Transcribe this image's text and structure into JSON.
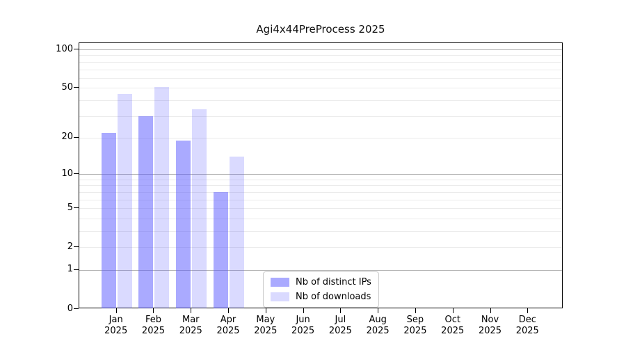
{
  "chart_data": {
    "type": "bar",
    "title": "Agi4x44PreProcess 2025",
    "categories": [
      "Jan 2025",
      "Feb 2025",
      "Mar 2025",
      "Apr 2025",
      "May 2025",
      "Jun 2025",
      "Jul 2025",
      "Aug 2025",
      "Sep 2025",
      "Oct 2025",
      "Nov 2025",
      "Dec 2025"
    ],
    "series": [
      {
        "name": "Nb of distinct IPs",
        "color": "#5555ff",
        "alpha": 0.5,
        "values": [
          22,
          30,
          19,
          7,
          0,
          0,
          0,
          0,
          0,
          0,
          0,
          0
        ]
      },
      {
        "name": "Nb of downloads",
        "color": "#5555ff",
        "alpha": 0.22,
        "values": [
          45,
          51,
          34,
          14,
          0,
          0,
          0,
          0,
          0,
          0,
          0,
          0
        ]
      }
    ],
    "xlabel": "",
    "ylabel": "",
    "yscale": "log1p",
    "ylim": [
      0,
      112
    ],
    "yticks": [
      0,
      1,
      2,
      5,
      10,
      20,
      50,
      100
    ],
    "major_gridlines": [
      1,
      10,
      100
    ],
    "minor_gridlines": [
      2,
      3,
      4,
      5,
      6,
      7,
      8,
      9,
      20,
      30,
      40,
      50,
      60,
      70,
      80,
      90
    ],
    "grid": true,
    "legend_position": "lower center",
    "colors": {
      "axis_frame": "#000000",
      "major_grid": "#b3b3b3",
      "minor_grid": "#ebebeb",
      "text": "#000000",
      "background": "#ffffff"
    }
  }
}
